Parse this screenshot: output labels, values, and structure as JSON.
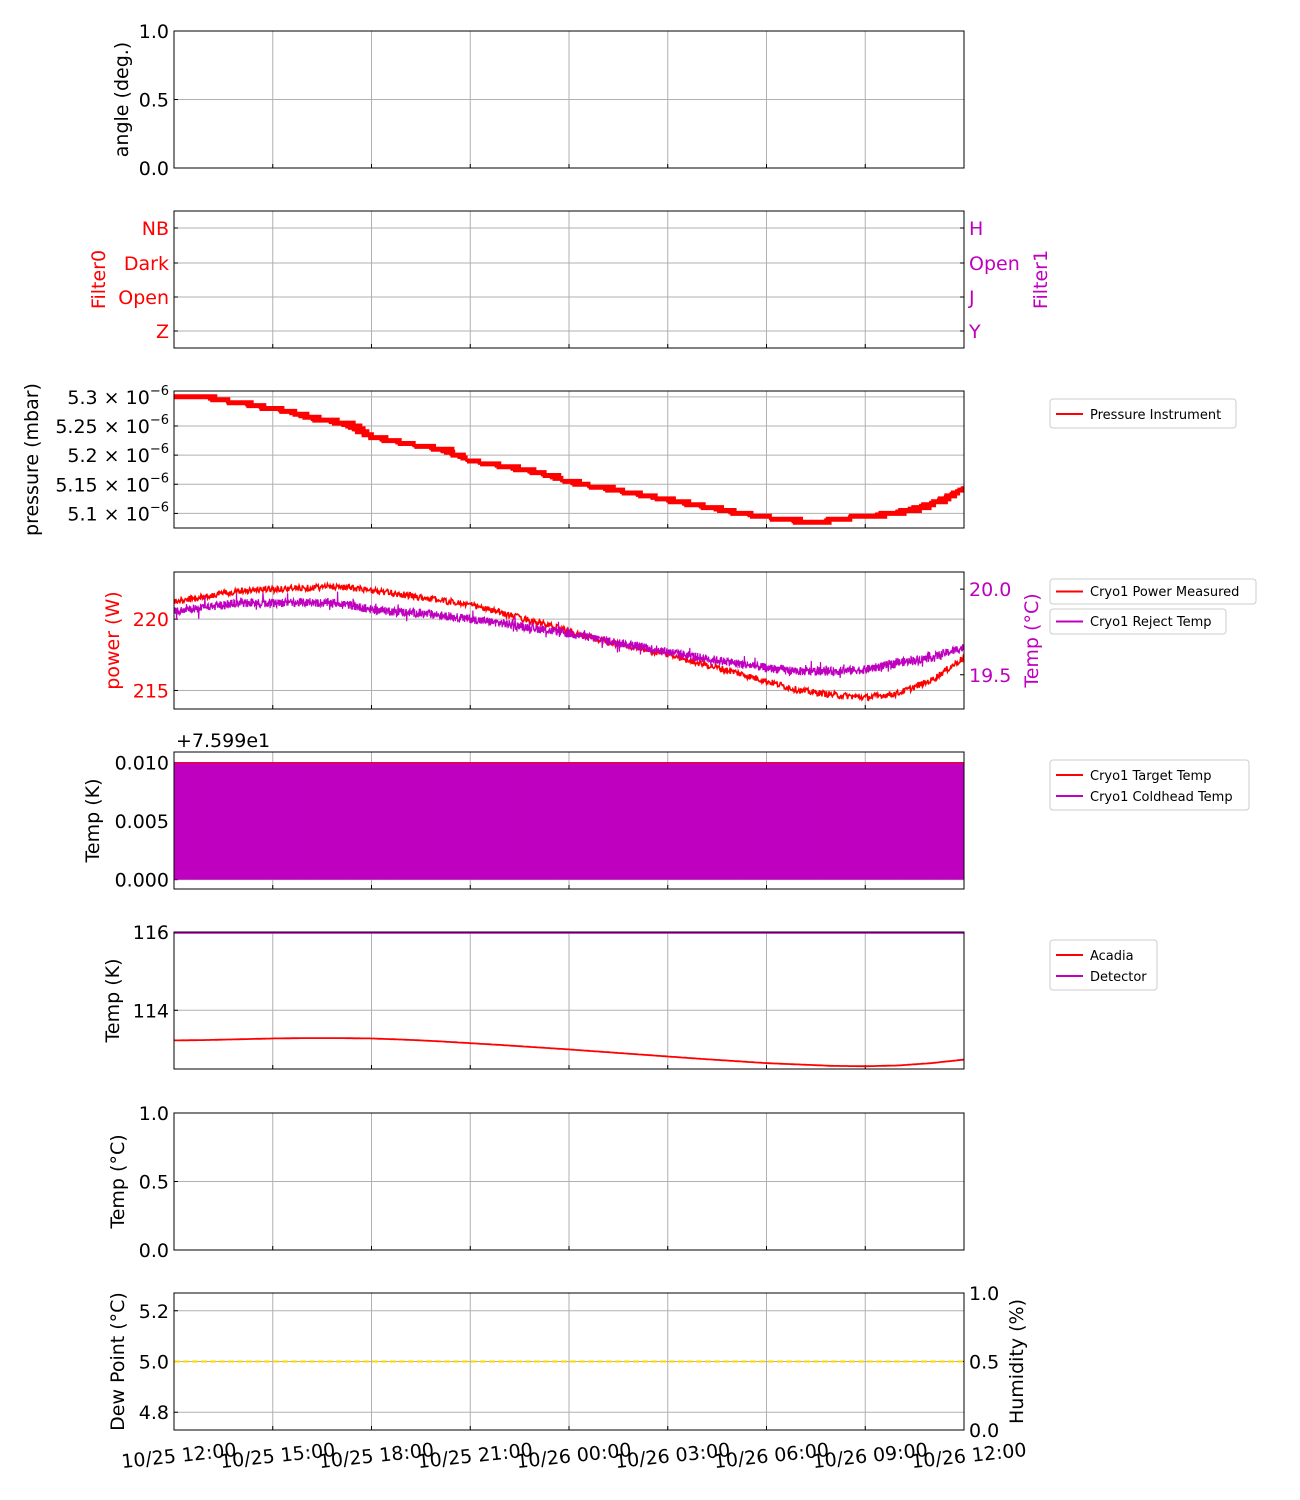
{
  "time_axis": {
    "tick_labels": [
      "10/25 12:00",
      "10/25 15:00",
      "10/25 18:00",
      "10/25 21:00",
      "10/26 00:00",
      "10/26 03:00",
      "10/26 06:00",
      "10/26 09:00",
      "10/26 12:00"
    ]
  },
  "chart_data": [
    {
      "id": "angle",
      "type": "line",
      "ylabel": "angle (deg.)",
      "ylim": [
        0,
        1
      ],
      "yticks": [
        0,
        0.5,
        1
      ],
      "ytick_labels": [
        "0.0",
        "0.5",
        "1.0"
      ],
      "grid": true,
      "series": []
    },
    {
      "id": "filters",
      "type": "line",
      "ylabel": "Filter0",
      "ylabel_color": "#ff0000",
      "ytick_labels": [
        "NB",
        "Dark",
        "Open",
        "Z"
      ],
      "ylabel_right": "Filter1",
      "ylabel_right_color": "#bf00bf",
      "ytick_labels_right": [
        "H",
        "Open",
        "J",
        "Y"
      ],
      "grid": true,
      "series": []
    },
    {
      "id": "pressure",
      "type": "line",
      "ylabel": "pressure (mbar)",
      "ylim": [
        5.075e-06,
        5.31e-06
      ],
      "yticks": [
        5.3e-06,
        5.25e-06,
        5.2e-06,
        5.15e-06,
        5.1e-06
      ],
      "ytick_mantissas": [
        "5.3",
        "5.25",
        "5.2",
        "5.15",
        "5.1"
      ],
      "ytick_exponent": "−6",
      "grid": true,
      "legend": "top-right",
      "series": [
        {
          "name": "Pressure Instrument",
          "color": "#ff0000",
          "x_hours": [
            0,
            0.5,
            1,
            1.5,
            2,
            2.5,
            3,
            3.5,
            4,
            5,
            6,
            7,
            8,
            9,
            10,
            11,
            12,
            13,
            14,
            15,
            16,
            17,
            18,
            19,
            19.5,
            20,
            21,
            22,
            23,
            23.5,
            24
          ],
          "y": [
            5.3e-06,
            5.299e-06,
            5.298e-06,
            5.293e-06,
            5.29e-06,
            5.283e-06,
            5.28e-06,
            5.273e-06,
            5.264e-06,
            5.255e-06,
            5.23e-06,
            5.22e-06,
            5.21e-06,
            5.19e-06,
            5.18e-06,
            5.17e-06,
            5.153e-06,
            5.143e-06,
            5.133e-06,
            5.122e-06,
            5.112e-06,
            5.101e-06,
            5.093e-06,
            5.086e-06,
            5.085e-06,
            5.09e-06,
            5.095e-06,
            5.103e-06,
            5.118e-06,
            5.13e-06,
            5.145e-06
          ]
        }
      ]
    },
    {
      "id": "cryo_power",
      "type": "line",
      "ylabel": "power (W)",
      "ylabel_color": "#ff0000",
      "ylim": [
        213.7,
        223.3
      ],
      "yticks": [
        215,
        220
      ],
      "ytick_labels": [
        "215",
        "220"
      ],
      "ylabel_right": "Temp (°C)",
      "ylabel_right_color": "#bf00bf",
      "ylim_right": [
        19.3,
        20.1
      ],
      "yticks_right": [
        19.5,
        20.0
      ],
      "ytick_labels_right": [
        "19.5",
        "20.0"
      ],
      "grid": true,
      "legend": "top-right",
      "series": [
        {
          "name": "Cryo1 Power Measured",
          "color": "#ff0000",
          "axis": "left",
          "x_hours": [
            0,
            2,
            4,
            5,
            7,
            9,
            11,
            13,
            15,
            17,
            19,
            20,
            21,
            22,
            23,
            24
          ],
          "y": [
            221.2,
            222.0,
            222.2,
            222.3,
            221.7,
            221.0,
            219.8,
            218.5,
            217.5,
            216.3,
            215.0,
            214.7,
            214.5,
            214.8,
            215.7,
            217.3
          ]
        },
        {
          "name": "Cryo1 Reject Temp",
          "color": "#bf00bf",
          "axis": "right",
          "x_hours": [
            0,
            2,
            4,
            5,
            6,
            8,
            10,
            12,
            14,
            16,
            18,
            19,
            20,
            21,
            22,
            23,
            24
          ],
          "y": [
            19.87,
            19.92,
            19.92,
            19.92,
            19.88,
            19.85,
            19.8,
            19.74,
            19.67,
            19.6,
            19.54,
            19.52,
            19.52,
            19.53,
            19.57,
            19.6,
            19.66
          ]
        }
      ]
    },
    {
      "id": "cryo_temp",
      "type": "line",
      "ylabel": "Temp (K)",
      "offset_text": "+7.599e1",
      "ylim": [
        -0.0008,
        0.0109
      ],
      "yticks": [
        0,
        0.005,
        0.01
      ],
      "ytick_labels": [
        "0.000",
        "0.005",
        "0.010"
      ],
      "grid": true,
      "legend": "top-right",
      "series": [
        {
          "name": "Cryo1 Target Temp",
          "color": "#ff0000",
          "y_const": 0.01
        },
        {
          "name": "Cryo1 Coldhead Temp",
          "color": "#bf00bf",
          "y_range": [
            0,
            0.01
          ]
        }
      ]
    },
    {
      "id": "detector",
      "type": "line",
      "ylabel": "Temp (K)",
      "ylim": [
        112.5,
        116
      ],
      "yticks": [
        114,
        116
      ],
      "ytick_labels": [
        "114",
        "116"
      ],
      "grid": true,
      "legend": "top-right",
      "series": [
        {
          "name": "Acadia",
          "color": "#ff0000",
          "x_hours": [
            0,
            1,
            2,
            3,
            4,
            5,
            6,
            7,
            8,
            10,
            12,
            14,
            16,
            18,
            20,
            21,
            22,
            23,
            24
          ],
          "y": [
            113.23,
            113.24,
            113.26,
            113.28,
            113.29,
            113.29,
            113.28,
            113.25,
            113.21,
            113.11,
            113.0,
            112.88,
            112.76,
            112.65,
            112.58,
            112.57,
            112.59,
            112.65,
            112.74
          ]
        },
        {
          "name": "Detector",
          "color": "#bf00bf",
          "y_const": 116
        }
      ]
    },
    {
      "id": "env_temp",
      "type": "line",
      "ylabel": "Temp (°C)",
      "ylim": [
        0,
        1
      ],
      "yticks": [
        0,
        0.5,
        1
      ],
      "ytick_labels": [
        "0.0",
        "0.5",
        "1.0"
      ],
      "grid": true,
      "series": []
    },
    {
      "id": "dewpoint",
      "type": "line",
      "ylabel": "Dew Point (°C)",
      "ylim": [
        4.73,
        5.27
      ],
      "yticks": [
        4.8,
        5.0,
        5.2
      ],
      "ytick_labels": [
        "4.8",
        "5.0",
        "5.2"
      ],
      "ylabel_right": "Humidity (%)",
      "ylim_right": [
        0,
        1
      ],
      "yticks_right": [
        0,
        0.5,
        1
      ],
      "ytick_labels_right": [
        "0.0",
        "0.5",
        "1.0"
      ],
      "grid": true,
      "series": [
        {
          "color": "#ffd700",
          "style": "dashed",
          "y_const": 5.0
        }
      ]
    }
  ]
}
